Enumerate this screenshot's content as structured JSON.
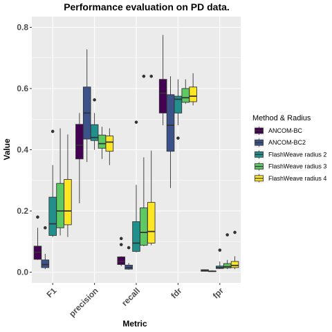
{
  "chart_data": {
    "type": "boxplot",
    "title": "Performance evaluation on PD data.",
    "xlabel": "Metric",
    "ylabel": "Value",
    "ylim": [
      -0.035,
      0.835
    ],
    "yticks": [
      "0.0",
      "0.2",
      "0.4",
      "0.6",
      "0.8"
    ],
    "ytick_values": [
      0.0,
      0.2,
      0.4,
      0.6,
      0.8
    ],
    "categories": [
      "F1",
      "precision",
      "recall",
      "fdr",
      "fpr"
    ],
    "legend_title": "Method & Radius",
    "legend_position": "right",
    "grid": true,
    "series": [
      {
        "name": "ANCOM-BC",
        "color": "#440154",
        "boxes": [
          {
            "whisker_low": 0.04,
            "q1": 0.042,
            "median": 0.065,
            "q3": 0.085,
            "whisker_high": 0.145,
            "outliers": [
              0.18
            ]
          },
          {
            "whisker_low": 0.225,
            "q1": 0.37,
            "median": 0.415,
            "q3": 0.483,
            "whisker_high": 0.52,
            "outliers": []
          },
          {
            "whisker_low": 0.02,
            "q1": 0.025,
            "median": 0.035,
            "q3": 0.05,
            "whisker_high": 0.052,
            "outliers": [
              0.09,
              0.11
            ]
          },
          {
            "whisker_low": 0.48,
            "q1": 0.52,
            "median": 0.585,
            "q3": 0.63,
            "whisker_high": 0.775,
            "outliers": []
          },
          {
            "whisker_low": 0.002,
            "q1": 0.003,
            "median": 0.005,
            "q3": 0.008,
            "whisker_high": 0.009,
            "outliers": []
          }
        ]
      },
      {
        "name": "ANCOM-BC2",
        "color": "#3b528b",
        "boxes": [
          {
            "whisker_low": 0.01,
            "q1": 0.015,
            "median": 0.025,
            "q3": 0.04,
            "whisker_high": 0.06,
            "outliers": [
              0.145
            ]
          },
          {
            "whisker_low": 0.36,
            "q1": 0.435,
            "median": 0.52,
            "q3": 0.605,
            "whisker_high": 0.728,
            "outliers": []
          },
          {
            "whisker_low": 0.008,
            "q1": 0.01,
            "median": 0.015,
            "q3": 0.023,
            "whisker_high": 0.03,
            "outliers": [
              0.08
            ]
          },
          {
            "whisker_low": 0.275,
            "q1": 0.395,
            "median": 0.48,
            "q3": 0.58,
            "whisker_high": 0.64,
            "outliers": []
          },
          {
            "whisker_low": 0.001,
            "q1": 0.002,
            "median": 0.003,
            "q3": 0.004,
            "whisker_high": 0.006,
            "outliers": []
          }
        ]
      },
      {
        "name": "FlashWeave radius 2",
        "color": "#21908c",
        "boxes": [
          {
            "whisker_low": 0.115,
            "q1": 0.12,
            "median": 0.158,
            "q3": 0.245,
            "whisker_high": 0.35,
            "outliers": [
              0.46
            ]
          },
          {
            "whisker_low": 0.4,
            "q1": 0.43,
            "median": 0.44,
            "q3": 0.482,
            "whisker_high": 0.52,
            "outliers": [
              0.563
            ]
          },
          {
            "whisker_low": 0.065,
            "q1": 0.068,
            "median": 0.095,
            "q3": 0.165,
            "whisker_high": 0.285,
            "outliers": [
              0.49
            ]
          },
          {
            "whisker_low": 0.48,
            "q1": 0.52,
            "median": 0.565,
            "q3": 0.575,
            "whisker_high": 0.63,
            "outliers": [
              0.438
            ]
          },
          {
            "whisker_low": 0.01,
            "q1": 0.012,
            "median": 0.015,
            "q3": 0.02,
            "whisker_high": 0.035,
            "outliers": [
              0.072
            ]
          }
        ]
      },
      {
        "name": "FlashWeave radius 3",
        "color": "#5ec962",
        "boxes": [
          {
            "whisker_low": 0.12,
            "q1": 0.145,
            "median": 0.2,
            "q3": 0.29,
            "whisker_high": 0.47,
            "outliers": []
          },
          {
            "whisker_low": 0.37,
            "q1": 0.405,
            "median": 0.42,
            "q3": 0.448,
            "whisker_high": 0.475,
            "outliers": []
          },
          {
            "whisker_low": 0.085,
            "q1": 0.088,
            "median": 0.13,
            "q3": 0.21,
            "whisker_high": 0.375,
            "outliers": [
              0.64
            ]
          },
          {
            "whisker_low": 0.55,
            "q1": 0.555,
            "median": 0.57,
            "q3": 0.6,
            "whisker_high": 0.63,
            "outliers": []
          },
          {
            "whisker_low": 0.01,
            "q1": 0.014,
            "median": 0.018,
            "q3": 0.028,
            "whisker_high": 0.04,
            "outliers": [
              0.122
            ]
          }
        ]
      },
      {
        "name": "FlashWeave radius 4",
        "color": "#fde725",
        "boxes": [
          {
            "whisker_low": 0.115,
            "q1": 0.155,
            "median": 0.2,
            "q3": 0.303,
            "whisker_high": 0.45,
            "outliers": []
          },
          {
            "whisker_low": 0.35,
            "q1": 0.395,
            "median": 0.425,
            "q3": 0.445,
            "whisker_high": 0.47,
            "outliers": []
          },
          {
            "whisker_low": 0.088,
            "q1": 0.095,
            "median": 0.133,
            "q3": 0.228,
            "whisker_high": 0.397,
            "outliers": [
              0.64
            ]
          },
          {
            "whisker_low": 0.545,
            "q1": 0.557,
            "median": 0.575,
            "q3": 0.605,
            "whisker_high": 0.65,
            "outliers": []
          },
          {
            "whisker_low": 0.01,
            "q1": 0.015,
            "median": 0.022,
            "q3": 0.035,
            "whisker_high": 0.052,
            "outliers": [
              0.13
            ]
          }
        ]
      }
    ]
  }
}
